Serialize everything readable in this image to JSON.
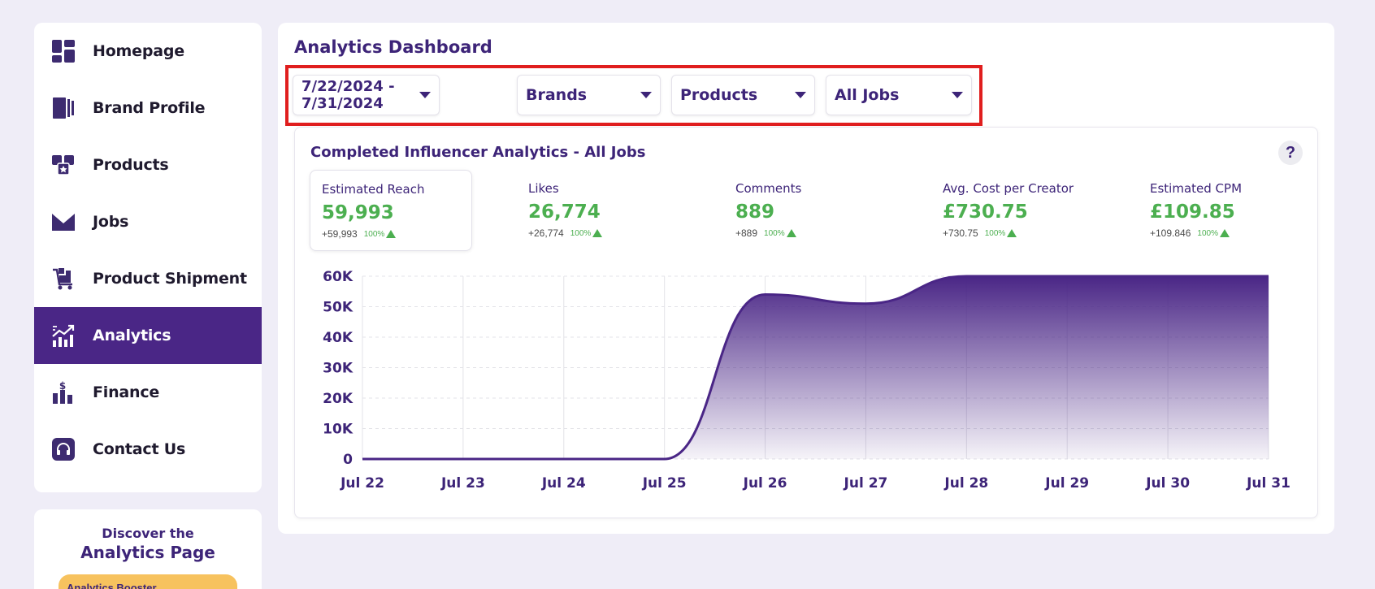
{
  "sidebar": {
    "items": [
      {
        "label": "Homepage",
        "icon": "dashboard-icon"
      },
      {
        "label": "Brand Profile",
        "icon": "brand-profile-icon"
      },
      {
        "label": "Products",
        "icon": "products-icon"
      },
      {
        "label": "Jobs",
        "icon": "envelope-icon"
      },
      {
        "label": "Product Shipment",
        "icon": "cart-icon"
      },
      {
        "label": "Analytics",
        "icon": "analytics-icon"
      },
      {
        "label": "Finance",
        "icon": "finance-icon"
      },
      {
        "label": "Contact Us",
        "icon": "headset-icon"
      }
    ],
    "active": "Analytics"
  },
  "promo": {
    "subtitle": "Discover the",
    "title": "Analytics Page",
    "pill_label": "Analytics Booster"
  },
  "main": {
    "title": "Analytics Dashboard",
    "filters": {
      "date_range": "7/22/2024 - 7/31/2024",
      "brands": "Brands",
      "products": "Products",
      "jobs": "All Jobs"
    },
    "card": {
      "title": "Completed Influencer Analytics - All Jobs",
      "help": "?",
      "metrics": [
        {
          "label": "Estimated Reach",
          "value": "59,993",
          "delta": "+59,993",
          "pct": "100%"
        },
        {
          "label": "Likes",
          "value": "26,774",
          "delta": "+26,774",
          "pct": "100%"
        },
        {
          "label": "Comments",
          "value": "889",
          "delta": "+889",
          "pct": "100%"
        },
        {
          "label": "Avg. Cost per Creator",
          "value": "£730.75",
          "delta": "+730.75",
          "pct": "100%"
        },
        {
          "label": "Estimated CPM",
          "value": "£109.85",
          "delta": "+109.846",
          "pct": "100%"
        }
      ]
    }
  },
  "colors": {
    "accent": "#4a2686",
    "positive": "#4caf50",
    "highlight": "#e01e1e",
    "background": "#efedf7"
  },
  "chart_data": {
    "type": "area",
    "x": [
      "Jul 22",
      "Jul 23",
      "Jul 24",
      "Jul 25",
      "Jul 26",
      "Jul 27",
      "Jul 28",
      "Jul 29",
      "Jul 30",
      "Jul 31"
    ],
    "y_ticks": [
      "0",
      "10K",
      "20K",
      "30K",
      "40K",
      "50K",
      "60K"
    ],
    "ylim": [
      0,
      60000
    ],
    "grid": true,
    "series": [
      {
        "values": [
          0,
          0,
          0,
          0,
          54000,
          51000,
          60000,
          60000,
          60000,
          60000
        ]
      }
    ]
  }
}
